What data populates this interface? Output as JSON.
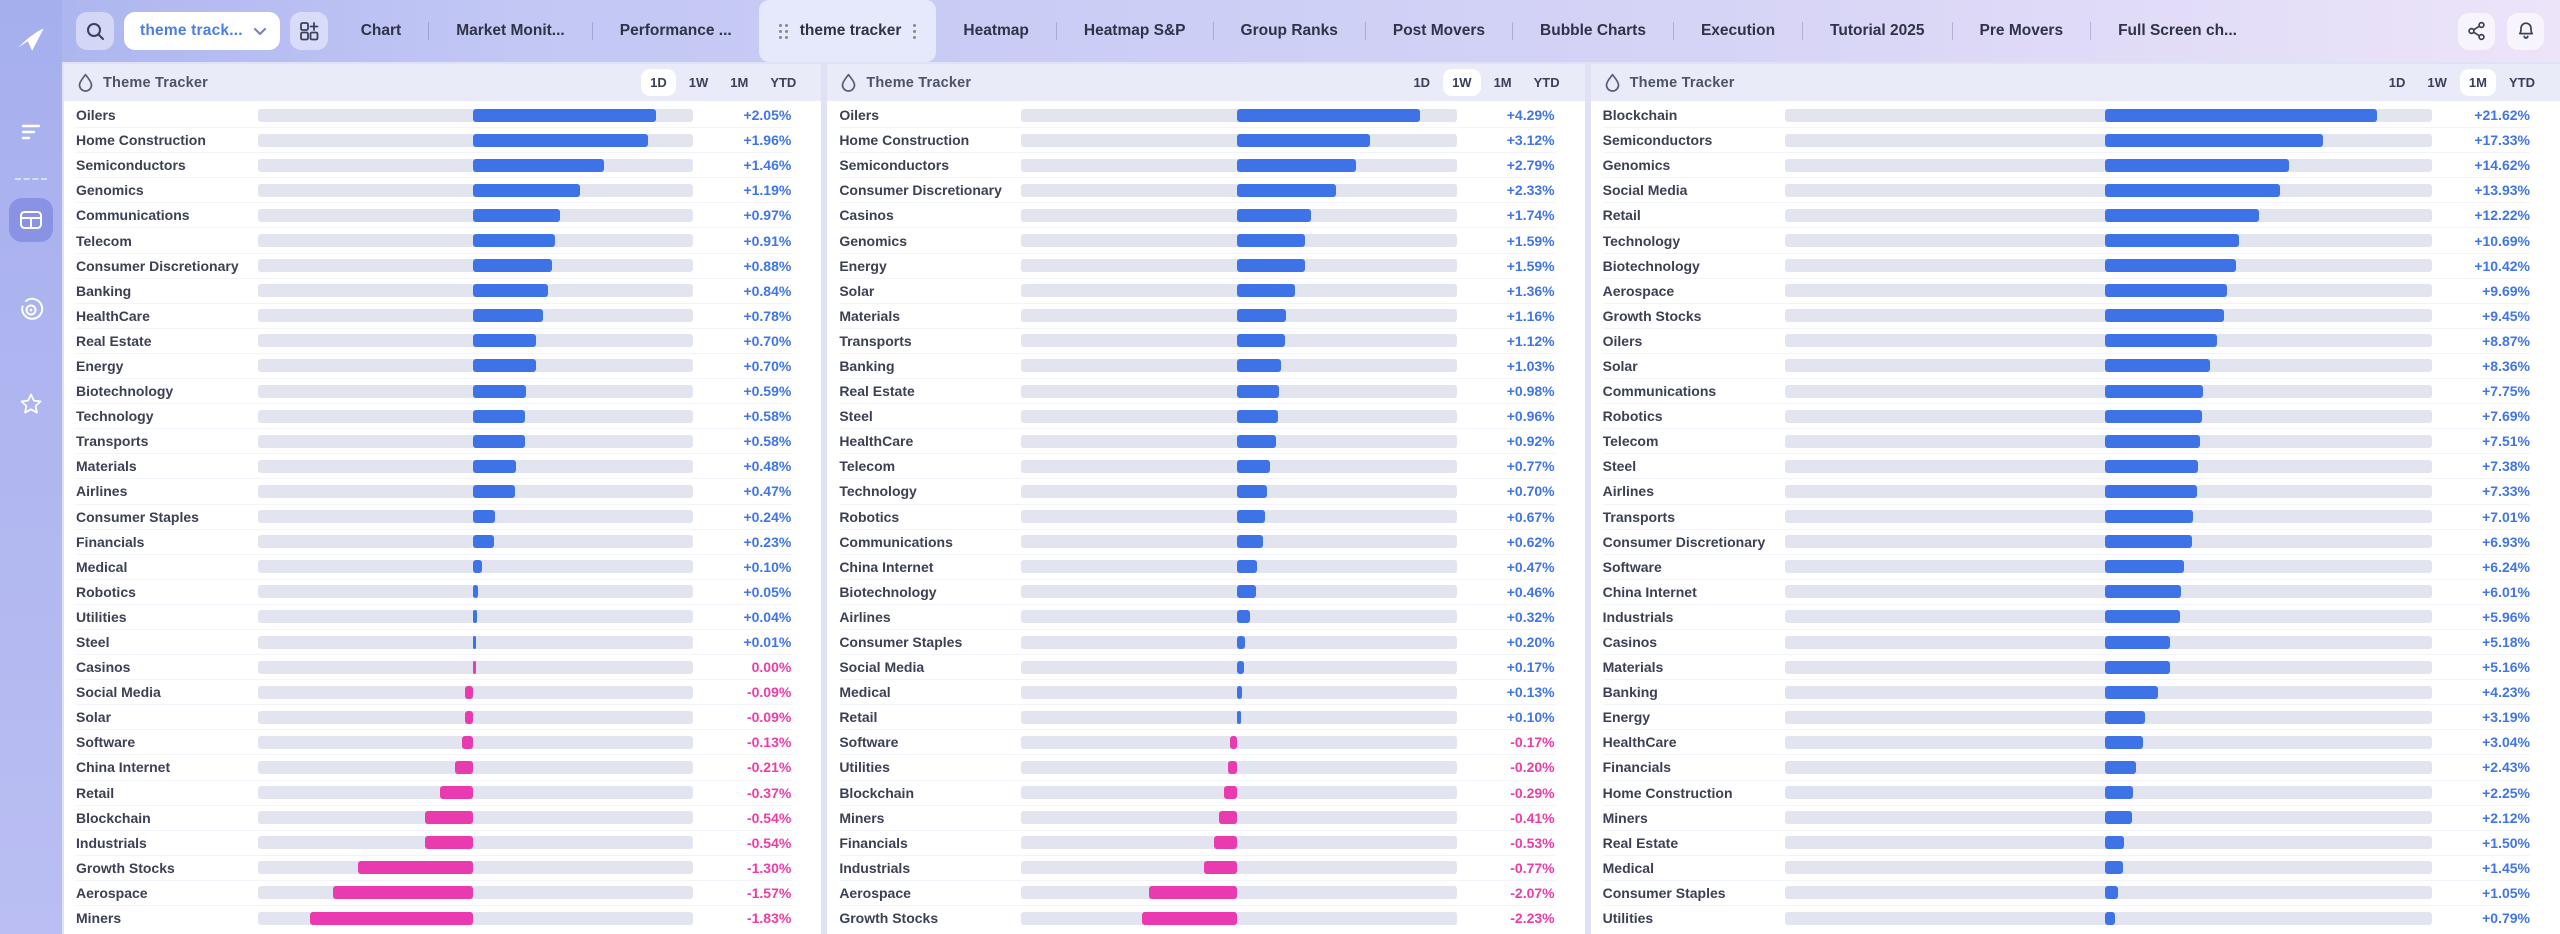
{
  "sidebar": {
    "icons": [
      {
        "name": "app-logo",
        "active": false
      },
      {
        "name": "menu-lines-icon",
        "active": false
      },
      {
        "name": "dashboard-grid-icon",
        "active": true
      },
      {
        "name": "target-icon",
        "active": false
      },
      {
        "name": "star-icon",
        "active": false
      }
    ]
  },
  "topbar": {
    "left_icons": [
      "search-icon",
      "grid-add-icon"
    ],
    "dropdown": {
      "value": "theme track...",
      "chevron": "down"
    },
    "tabs": [
      {
        "label": "Chart",
        "active": false
      },
      {
        "label": "Market Monit...",
        "active": false
      },
      {
        "label": "Performance ...",
        "active": false
      },
      {
        "label": "theme tracker",
        "active": true
      },
      {
        "label": "Heatmap",
        "active": false
      },
      {
        "label": "Heatmap S&P",
        "active": false
      },
      {
        "label": "Group Ranks",
        "active": false
      },
      {
        "label": "Post Movers",
        "active": false
      },
      {
        "label": "Bubble Charts",
        "active": false
      },
      {
        "label": "Execution",
        "active": false
      },
      {
        "label": "Tutorial 2025",
        "active": false
      },
      {
        "label": "Pre Movers",
        "active": false
      },
      {
        "label": "Full Screen ch...",
        "active": false
      }
    ],
    "right_icons": [
      "share-icon",
      "bell-icon"
    ]
  },
  "colors": {
    "positive": "#3d73e7",
    "negative": "#e93ab0",
    "track": "#e2e4ef"
  },
  "panels": [
    {
      "title": "Theme Tracker",
      "icon": "droplet-icon",
      "ranges": [
        "1D",
        "1W",
        "1M",
        "YTD"
      ],
      "active_range": "1D",
      "active_range_index": 0,
      "rows": [
        [
          "Oilers",
          "+2.05%"
        ],
        [
          "Home Construction",
          "+1.96%"
        ],
        [
          "Semiconductors",
          "+1.46%"
        ],
        [
          "Genomics",
          "+1.19%"
        ],
        [
          "Communications",
          "+0.97%"
        ],
        [
          "Telecom",
          "+0.91%"
        ],
        [
          "Consumer Discretionary",
          "+0.88%"
        ],
        [
          "Banking",
          "+0.84%"
        ],
        [
          "HealthCare",
          "+0.78%"
        ],
        [
          "Real Estate",
          "+0.70%"
        ],
        [
          "Energy",
          "+0.70%"
        ],
        [
          "Biotechnology",
          "+0.59%"
        ],
        [
          "Technology",
          "+0.58%"
        ],
        [
          "Transports",
          "+0.58%"
        ],
        [
          "Materials",
          "+0.48%"
        ],
        [
          "Airlines",
          "+0.47%"
        ],
        [
          "Consumer Staples",
          "+0.24%"
        ],
        [
          "Financials",
          "+0.23%"
        ],
        [
          "Medical",
          "+0.10%"
        ],
        [
          "Robotics",
          "+0.05%"
        ],
        [
          "Utilities",
          "+0.04%"
        ],
        [
          "Steel",
          "+0.01%"
        ],
        [
          "Casinos",
          "0.00%"
        ],
        [
          "Social Media",
          "-0.09%"
        ],
        [
          "Solar",
          "-0.09%"
        ],
        [
          "Software",
          "-0.13%"
        ],
        [
          "China Internet",
          "-0.21%"
        ],
        [
          "Retail",
          "-0.37%"
        ],
        [
          "Blockchain",
          "-0.54%"
        ],
        [
          "Industrials",
          "-0.54%"
        ],
        [
          "Growth Stocks",
          "-1.30%"
        ],
        [
          "Aerospace",
          "-1.57%"
        ],
        [
          "Miners",
          "-1.83%"
        ]
      ]
    },
    {
      "title": "Theme Tracker",
      "icon": "droplet-icon",
      "ranges": [
        "1D",
        "1W",
        "1M",
        "YTD"
      ],
      "active_range": "1W",
      "active_range_index": 1,
      "rows": [
        [
          "Oilers",
          "+4.29%"
        ],
        [
          "Home Construction",
          "+3.12%"
        ],
        [
          "Semiconductors",
          "+2.79%"
        ],
        [
          "Consumer Discretionary",
          "+2.33%"
        ],
        [
          "Casinos",
          "+1.74%"
        ],
        [
          "Genomics",
          "+1.59%"
        ],
        [
          "Energy",
          "+1.59%"
        ],
        [
          "Solar",
          "+1.36%"
        ],
        [
          "Materials",
          "+1.16%"
        ],
        [
          "Transports",
          "+1.12%"
        ],
        [
          "Banking",
          "+1.03%"
        ],
        [
          "Real Estate",
          "+0.98%"
        ],
        [
          "Steel",
          "+0.96%"
        ],
        [
          "HealthCare",
          "+0.92%"
        ],
        [
          "Telecom",
          "+0.77%"
        ],
        [
          "Technology",
          "+0.70%"
        ],
        [
          "Robotics",
          "+0.67%"
        ],
        [
          "Communications",
          "+0.62%"
        ],
        [
          "China Internet",
          "+0.47%"
        ],
        [
          "Biotechnology",
          "+0.46%"
        ],
        [
          "Airlines",
          "+0.32%"
        ],
        [
          "Consumer Staples",
          "+0.20%"
        ],
        [
          "Social Media",
          "+0.17%"
        ],
        [
          "Medical",
          "+0.13%"
        ],
        [
          "Retail",
          "+0.10%"
        ],
        [
          "Software",
          "-0.17%"
        ],
        [
          "Utilities",
          "-0.20%"
        ],
        [
          "Blockchain",
          "-0.29%"
        ],
        [
          "Miners",
          "-0.41%"
        ],
        [
          "Financials",
          "-0.53%"
        ],
        [
          "Industrials",
          "-0.77%"
        ],
        [
          "Aerospace",
          "-2.07%"
        ],
        [
          "Growth Stocks",
          "-2.23%"
        ]
      ]
    },
    {
      "title": "Theme Tracker",
      "icon": "droplet-icon",
      "ranges": [
        "1D",
        "1W",
        "1M",
        "YTD"
      ],
      "active_range": "1M",
      "active_range_index": 2,
      "rows": [
        [
          "Blockchain",
          "+21.62%"
        ],
        [
          "Semiconductors",
          "+17.33%"
        ],
        [
          "Genomics",
          "+14.62%"
        ],
        [
          "Social Media",
          "+13.93%"
        ],
        [
          "Retail",
          "+12.22%"
        ],
        [
          "Technology",
          "+10.69%"
        ],
        [
          "Biotechnology",
          "+10.42%"
        ],
        [
          "Aerospace",
          "+9.69%"
        ],
        [
          "Growth Stocks",
          "+9.45%"
        ],
        [
          "Oilers",
          "+8.87%"
        ],
        [
          "Solar",
          "+8.36%"
        ],
        [
          "Communications",
          "+7.75%"
        ],
        [
          "Robotics",
          "+7.69%"
        ],
        [
          "Telecom",
          "+7.51%"
        ],
        [
          "Steel",
          "+7.38%"
        ],
        [
          "Airlines",
          "+7.33%"
        ],
        [
          "Transports",
          "+7.01%"
        ],
        [
          "Consumer Discretionary",
          "+6.93%"
        ],
        [
          "Software",
          "+6.24%"
        ],
        [
          "China Internet",
          "+6.01%"
        ],
        [
          "Industrials",
          "+5.96%"
        ],
        [
          "Casinos",
          "+5.18%"
        ],
        [
          "Materials",
          "+5.16%"
        ],
        [
          "Banking",
          "+4.23%"
        ],
        [
          "Energy",
          "+3.19%"
        ],
        [
          "HealthCare",
          "+3.04%"
        ],
        [
          "Financials",
          "+2.43%"
        ],
        [
          "Home Construction",
          "+2.25%"
        ],
        [
          "Miners",
          "+2.12%"
        ],
        [
          "Real Estate",
          "+1.50%"
        ],
        [
          "Medical",
          "+1.45%"
        ],
        [
          "Consumer Staples",
          "+1.05%"
        ],
        [
          "Utilities",
          "+0.79%"
        ]
      ]
    }
  ]
}
